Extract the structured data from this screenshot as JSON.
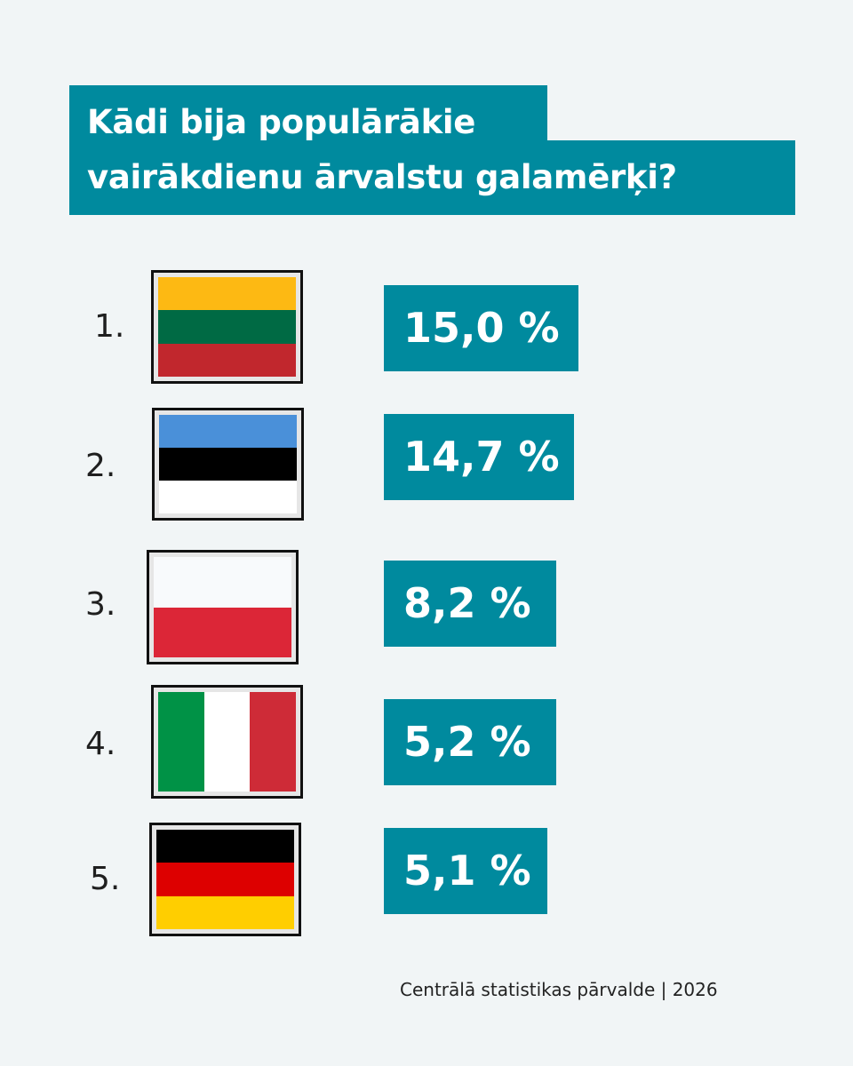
{
  "title": {
    "line1": "Kādi bija populārākie",
    "line2": "vairākdienu ārvalstu galamērķi?"
  },
  "ranking": [
    {
      "rank": "1.",
      "flag": "lithuania-flag",
      "value": "15,0 %",
      "stripes": [
        "#fdb913",
        "#006a44",
        "#c1272d"
      ],
      "orientation": "horizontal"
    },
    {
      "rank": "2.",
      "flag": "estonia-flag",
      "value": "14,7 %",
      "stripes": [
        "#4a90d9",
        "#000000",
        "#ffffff"
      ],
      "orientation": "horizontal"
    },
    {
      "rank": "3.",
      "flag": "poland-flag",
      "value": "8,2 %",
      "stripes": [
        "#f8fafc",
        "#dc2637"
      ],
      "orientation": "horizontal"
    },
    {
      "rank": "4.",
      "flag": "italy-flag",
      "value": "5,2 %",
      "stripes": [
        "#009246",
        "#ffffff",
        "#ce2b37"
      ],
      "orientation": "vertical"
    },
    {
      "rank": "5.",
      "flag": "germany-flag",
      "value": "5,1 %",
      "stripes": [
        "#000000",
        "#dd0000",
        "#ffce00"
      ],
      "orientation": "horizontal"
    }
  ],
  "footer": "Centrālā statistikas pārvalde | 2026"
}
